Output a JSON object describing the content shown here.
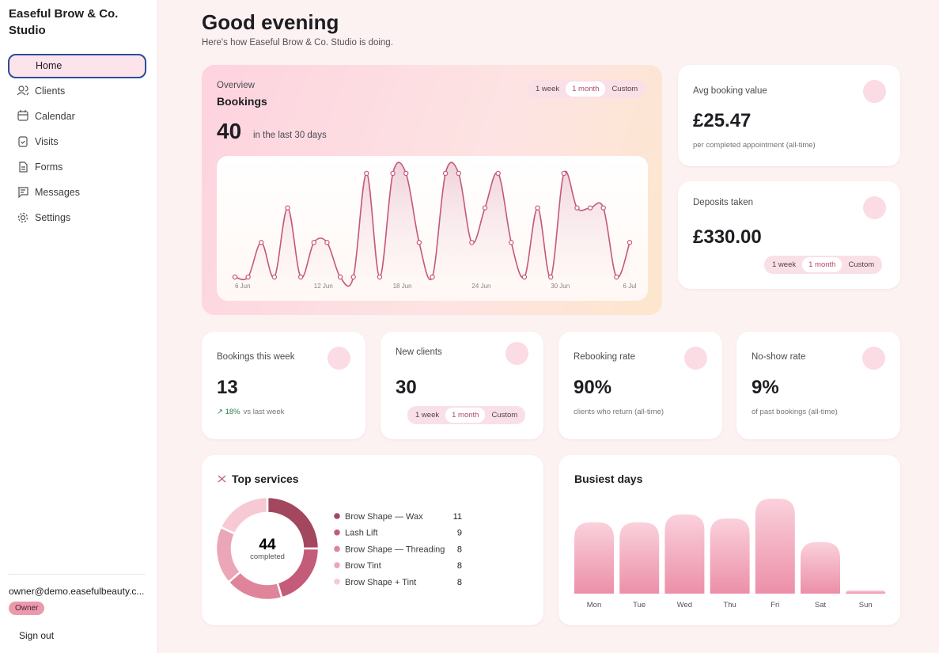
{
  "sidebar": {
    "brand": "Easeful Brow & Co. Studio",
    "nav": [
      "Home",
      "Clients",
      "Calendar",
      "Visits",
      "Forms",
      "Messages",
      "Settings"
    ],
    "active": 0,
    "user": "owner@demo.easefulbeauty.c...",
    "role": "Owner",
    "sign_out": "Sign out"
  },
  "header": {
    "title": "Good evening",
    "subtitle": "Here's how Easeful Brow & Co. Studio is doing."
  },
  "overview": {
    "eyebrow": "Overview",
    "title": "Bookings",
    "value": 40,
    "caption": "in the last 30 days",
    "ranges": [
      "1 week",
      "1 month",
      "Custom"
    ],
    "selected": 1,
    "chart": {
      "type": "line",
      "categories": [
        "6 Jun",
        null,
        null,
        null,
        null,
        null,
        "12 Jun",
        null,
        null,
        null,
        null,
        null,
        "18 Jun",
        null,
        null,
        null,
        null,
        null,
        "24 Jun",
        null,
        null,
        null,
        null,
        null,
        "30 Jun",
        null,
        null,
        null,
        null,
        null,
        "6 Jul"
      ],
      "values": [
        0,
        0,
        1,
        0,
        2,
        0,
        1,
        1,
        0,
        0,
        3,
        0,
        3,
        3,
        1,
        0,
        3,
        3,
        1,
        2,
        3,
        1,
        0,
        2,
        0,
        3,
        2,
        2,
        2,
        0,
        1
      ],
      "ylim": [
        0,
        3
      ],
      "color": "#c4587a"
    }
  },
  "avg_booking": {
    "title": "Avg booking value",
    "value": "£25.47",
    "note": "per completed appointment (all-time)"
  },
  "deposits": {
    "title": "Deposits taken",
    "value": "£330.00",
    "ranges": [
      "1 week",
      "1 month",
      "Custom"
    ],
    "selected": 1
  },
  "stats": [
    {
      "title": "Bookings this week",
      "value": "13",
      "trend": "18%",
      "note": "vs last week"
    },
    {
      "title": "New clients",
      "value": "30",
      "ranges": [
        "1 week",
        "1 month",
        "Custom"
      ],
      "selected": 1
    },
    {
      "title": "Rebooking rate",
      "value": "90%",
      "note": "clients who return (all-time)"
    },
    {
      "title": "No-show rate",
      "value": "9%",
      "note": "of past bookings (all-time)"
    }
  ],
  "top_services": {
    "title": "Top services",
    "chart": {
      "type": "donut",
      "center_value": 44,
      "center_label": "completed",
      "categories": [
        "Brow Shape — Wax",
        "Lash Lift",
        "Brow Shape — Threading",
        "Brow Tint",
        "Brow Shape + Tint"
      ],
      "values": [
        11,
        9,
        8,
        8,
        8
      ],
      "colors": [
        "#a3475f",
        "#c45c79",
        "#e0849b",
        "#eba6b8",
        "#f6c9d5"
      ]
    }
  },
  "busiest_days": {
    "title": "Busiest days",
    "chart": {
      "type": "bar",
      "categories": [
        "Mon",
        "Tue",
        "Wed",
        "Thu",
        "Fri",
        "Sat",
        "Sun"
      ],
      "values": [
        9,
        9,
        10,
        9.5,
        12,
        6.5,
        0.4
      ],
      "ylim": [
        0,
        12
      ],
      "color": "#ec8fa8"
    }
  }
}
